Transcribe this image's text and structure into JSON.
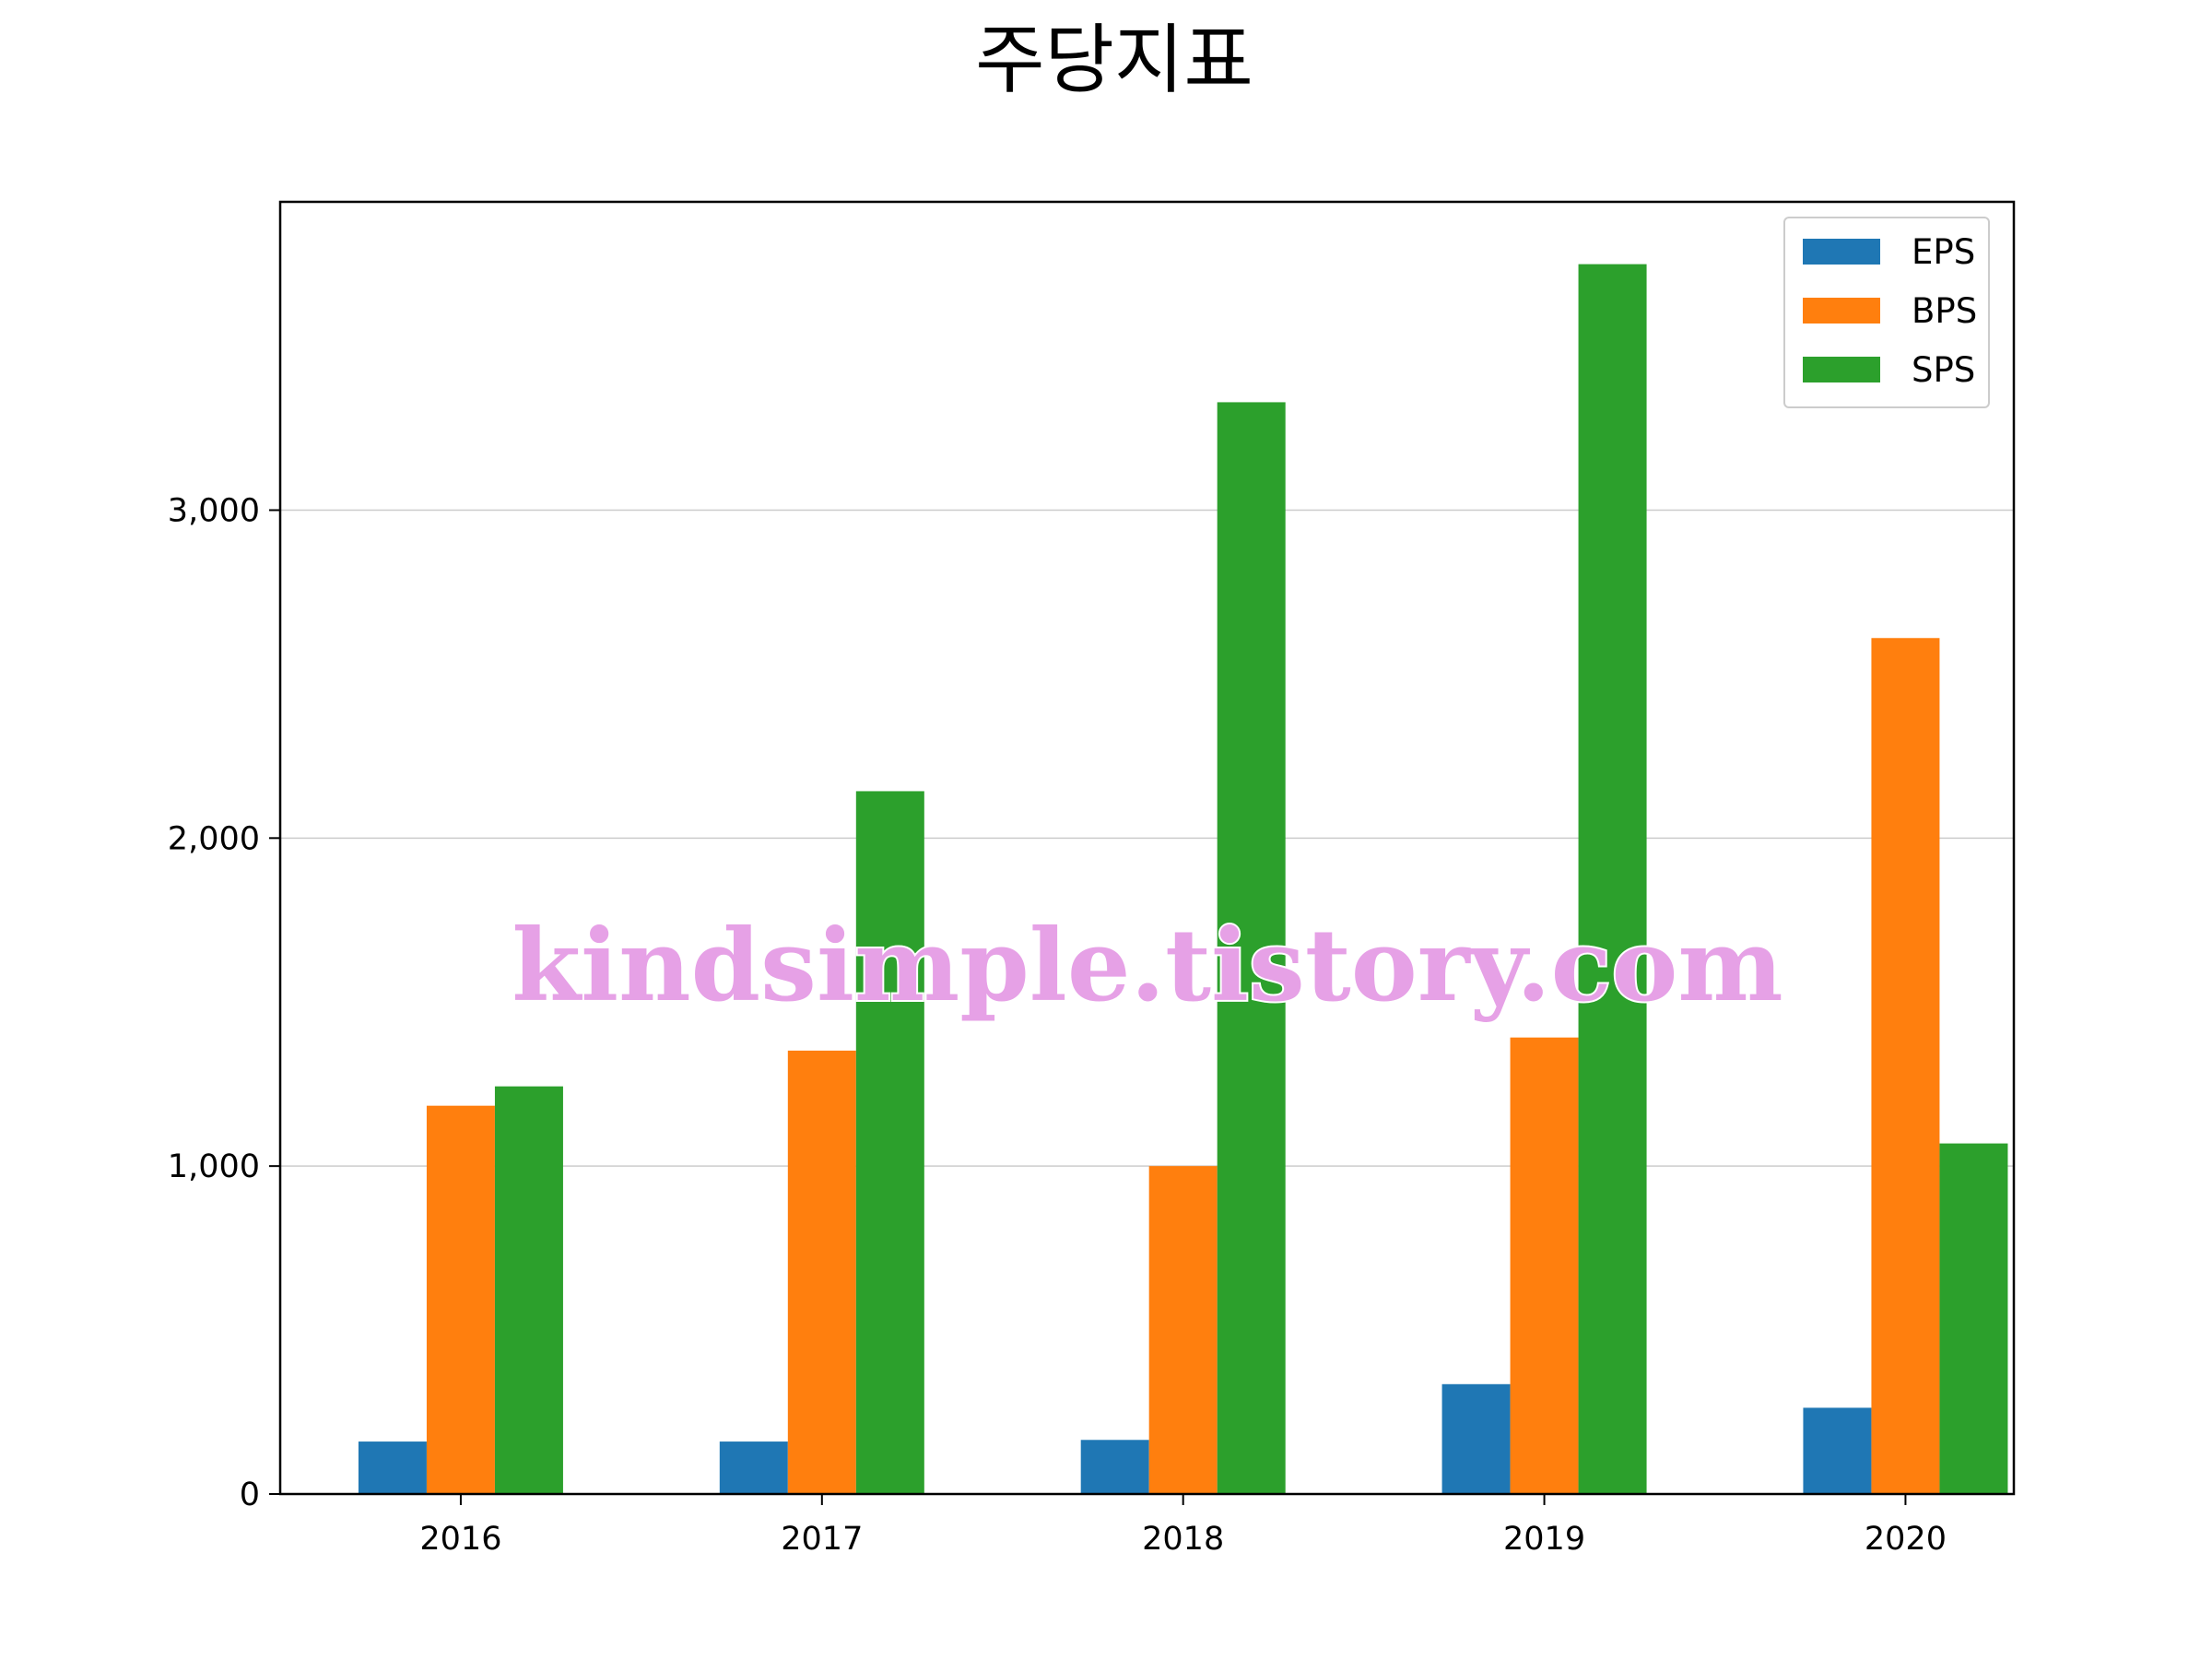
{
  "chart_data": {
    "type": "bar",
    "title": "주당지표",
    "xlabel": "",
    "ylabel": "",
    "categories": [
      "2016",
      "2017",
      "2018",
      "2019",
      "2020"
    ],
    "series": [
      {
        "name": "EPS",
        "color": "#1f77b4",
        "values": [
          160,
          160,
          165,
          335,
          263
        ]
      },
      {
        "name": "BPS",
        "color": "#ff7f0e",
        "values": [
          1184,
          1352,
          1000,
          1392,
          2610
        ]
      },
      {
        "name": "SPS",
        "color": "#2ca02c",
        "values": [
          1243,
          2143,
          3329,
          3750,
          1069
        ]
      }
    ],
    "ylim": [
      0,
      3940
    ],
    "yticks": [
      0,
      1000,
      2000,
      3000
    ],
    "ytick_labels": [
      "0",
      "1,000",
      "2,000",
      "3,000"
    ],
    "grid": "horizontal",
    "legend_position": "top-right"
  },
  "watermark": "kindsimple.tistory.com"
}
